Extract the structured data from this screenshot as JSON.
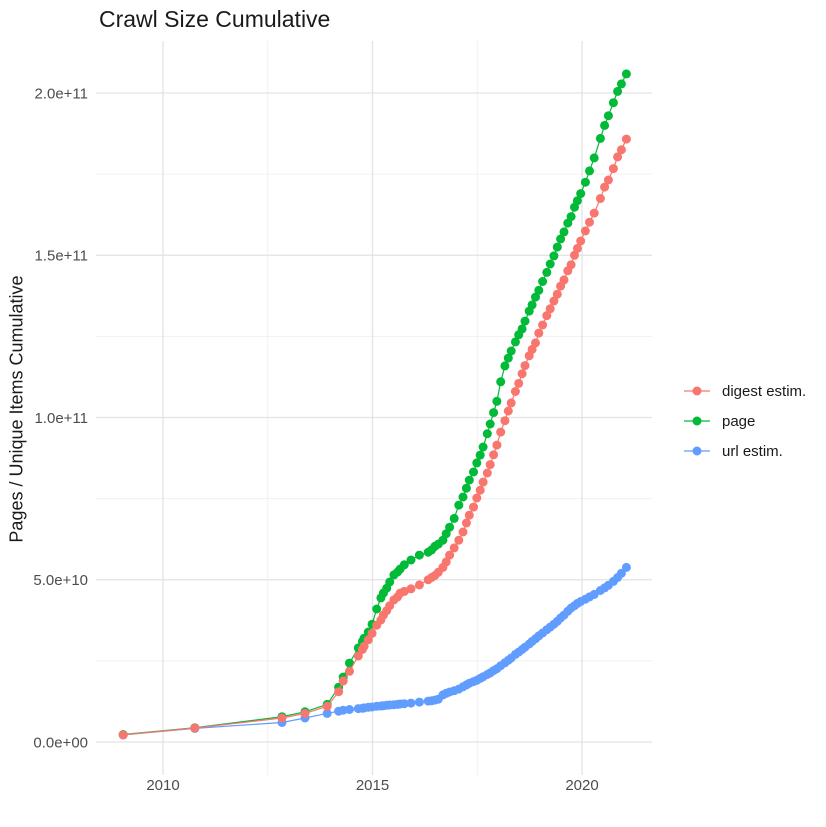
{
  "chart_data": {
    "type": "line",
    "title": "Crawl Size Cumulative",
    "ylabel": "Pages / Unique Items Cumulative",
    "xlabel": "",
    "grid": "major+minor",
    "legend_position": "right-middle",
    "colors": {
      "background": "#FFFFFF",
      "grid_major": "#E3E3E3",
      "grid_minor": "#F0F0F0",
      "axis_text": "#4D4D4D",
      "title_text": "#1A1A1A"
    },
    "x_axis": {
      "tick_labels": [
        "2010",
        "2015",
        "2020"
      ],
      "tick_values": [
        2010,
        2015,
        2020
      ],
      "minor_ticks": [
        2012.5,
        2017.5
      ],
      "range": [
        2008.4,
        2021.7
      ]
    },
    "y_axis": {
      "tick_labels": [
        "0.0e+00",
        "5.0e+10",
        "1.0e+11",
        "1.5e+11",
        "2.0e+11"
      ],
      "tick_values_e9": [
        0,
        50,
        100,
        150,
        200
      ],
      "minor_ticks_e9": [
        25,
        75,
        125,
        175
      ],
      "range_e9": [
        -10,
        216
      ],
      "unit": "values are in units of 1e9 (axis shows scientific notation)"
    },
    "x": [
      2009.05,
      2010.76,
      2012.84,
      2013.39,
      2013.92,
      2014.19,
      2014.3,
      2014.45,
      2014.66,
      2014.76,
      2014.8,
      2014.9,
      2014.99,
      2015.1,
      2015.2,
      2015.26,
      2015.34,
      2015.41,
      2015.51,
      2015.6,
      2015.66,
      2015.76,
      2015.92,
      2016.12,
      2016.33,
      2016.41,
      2016.49,
      2016.57,
      2016.68,
      2016.76,
      2016.84,
      2016.95,
      2017.06,
      2017.16,
      2017.24,
      2017.31,
      2017.41,
      2017.49,
      2017.57,
      2017.64,
      2017.74,
      2017.81,
      2017.89,
      2017.97,
      2018.06,
      2018.16,
      2018.24,
      2018.31,
      2018.41,
      2018.49,
      2018.57,
      2018.64,
      2018.74,
      2018.81,
      2018.89,
      2018.97,
      2019.06,
      2019.16,
      2019.24,
      2019.33,
      2019.41,
      2019.49,
      2019.57,
      2019.66,
      2019.74,
      2019.82,
      2019.89,
      2019.97,
      2020.08,
      2020.18,
      2020.29,
      2020.44,
      2020.54,
      2020.63,
      2020.75,
      2020.85,
      2020.94,
      2021.06
    ],
    "series": [
      {
        "name": "digest estim.",
        "color": "#F8766D",
        "values_e9": [
          2.2,
          4.3,
          7.4,
          8.8,
          11.0,
          15.5,
          18.8,
          21.8,
          26.5,
          28.5,
          29.5,
          31.5,
          33.5,
          36.0,
          37.6,
          39.1,
          40.5,
          42.0,
          43.8,
          44.7,
          45.9,
          46.4,
          47.2,
          48.4,
          50.0,
          50.7,
          51.3,
          52.3,
          53.8,
          55.5,
          57.6,
          59.8,
          62.2,
          64.7,
          67.5,
          69.9,
          72.4,
          75.2,
          77.6,
          80.1,
          82.9,
          85.5,
          88.5,
          91.5,
          95.5,
          99.0,
          102.0,
          104.5,
          108.0,
          110.5,
          113.5,
          116.0,
          119.0,
          121.0,
          123.0,
          126.0,
          128.5,
          131.4,
          133.5,
          135.9,
          138.0,
          140.5,
          142.4,
          145.2,
          147.1,
          150.0,
          152.1,
          154.4,
          157.5,
          160.2,
          163.0,
          167.5,
          171.0,
          173.2,
          176.7,
          180.3,
          182.5,
          185.8
        ]
      },
      {
        "name": "page",
        "color": "#00BA38",
        "values_e9": [
          2.3,
          4.4,
          7.8,
          9.3,
          11.6,
          16.9,
          20.0,
          24.3,
          29.0,
          31.0,
          32.0,
          33.9,
          36.3,
          41.0,
          44.4,
          45.9,
          47.4,
          49.3,
          51.5,
          52.4,
          53.3,
          54.6,
          56.1,
          57.6,
          58.5,
          59.2,
          60.3,
          61.0,
          62.2,
          64.2,
          66.2,
          68.9,
          73.0,
          75.5,
          78.2,
          80.7,
          83.2,
          86.0,
          88.4,
          90.9,
          95.0,
          98.0,
          101.5,
          105.0,
          111.0,
          115.9,
          118.3,
          120.5,
          123.3,
          125.5,
          127.3,
          129.7,
          132.8,
          134.7,
          137.1,
          139.2,
          141.9,
          144.7,
          147.3,
          149.8,
          152.5,
          155.0,
          157.2,
          159.9,
          161.9,
          164.8,
          166.8,
          169.0,
          172.5,
          176.0,
          180.0,
          186.0,
          190.0,
          193.0,
          197.0,
          200.5,
          202.8,
          205.9
        ]
      },
      {
        "name": "url estim.",
        "color": "#619CFF",
        "values_e9": [
          2.2,
          4.2,
          6.0,
          7.4,
          8.8,
          9.5,
          9.8,
          10.0,
          10.3,
          10.4,
          10.5,
          10.7,
          10.8,
          11.0,
          11.1,
          11.2,
          11.3,
          11.4,
          11.5,
          11.6,
          11.7,
          11.8,
          12.0,
          12.3,
          12.6,
          12.7,
          12.9,
          13.2,
          14.5,
          15.0,
          15.4,
          15.8,
          16.3,
          17.0,
          17.6,
          18.1,
          18.6,
          19.0,
          19.6,
          20.1,
          20.8,
          21.3,
          22.0,
          22.6,
          23.5,
          24.4,
          25.2,
          25.9,
          27.0,
          27.7,
          28.5,
          29.2,
          30.2,
          31.0,
          31.8,
          32.7,
          33.6,
          34.6,
          35.4,
          36.3,
          37.2,
          38.2,
          39.1,
          40.3,
          41.3,
          42.0,
          42.7,
          43.3,
          44.0,
          44.7,
          45.5,
          46.7,
          47.5,
          48.3,
          49.5,
          50.7,
          52.0,
          53.8
        ]
      }
    ]
  }
}
